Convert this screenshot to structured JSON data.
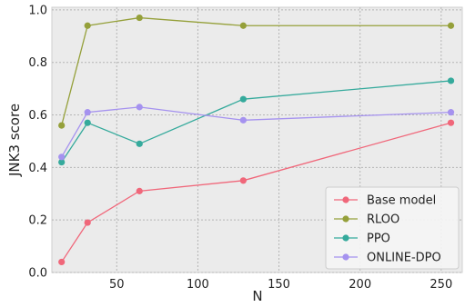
{
  "chart_data": {
    "type": "line",
    "title": "",
    "xlabel": "N",
    "ylabel": "JNK3 score",
    "x": [
      16,
      32,
      64,
      128,
      256
    ],
    "xlim": [
      10,
      263
    ],
    "ylim": [
      0.0,
      1.01
    ],
    "xticks": [
      50,
      100,
      150,
      200,
      250
    ],
    "yticks": [
      0.0,
      0.2,
      0.4,
      0.6,
      0.8,
      1.0
    ],
    "xtick_labels": [
      "50",
      "100",
      "150",
      "200",
      "250"
    ],
    "ytick_labels": [
      "0.0",
      "0.2",
      "0.4",
      "0.6",
      "0.8",
      "1.0"
    ],
    "grid": true,
    "legend_position": "bottom-right",
    "background": "#ebebeb",
    "series": [
      {
        "name": "Base model",
        "color": "#f0677a",
        "values": [
          0.04,
          0.19,
          0.31,
          0.35,
          0.57
        ]
      },
      {
        "name": "RLOO",
        "color": "#95a03a",
        "values": [
          0.56,
          0.94,
          0.97,
          0.94,
          0.94
        ]
      },
      {
        "name": "PPO",
        "color": "#35aa9c",
        "values": [
          0.42,
          0.57,
          0.49,
          0.66,
          0.73
        ]
      },
      {
        "name": "ONLINE-DPO",
        "color": "#a592ef",
        "values": [
          0.44,
          0.61,
          0.63,
          0.58,
          0.61
        ]
      }
    ]
  }
}
